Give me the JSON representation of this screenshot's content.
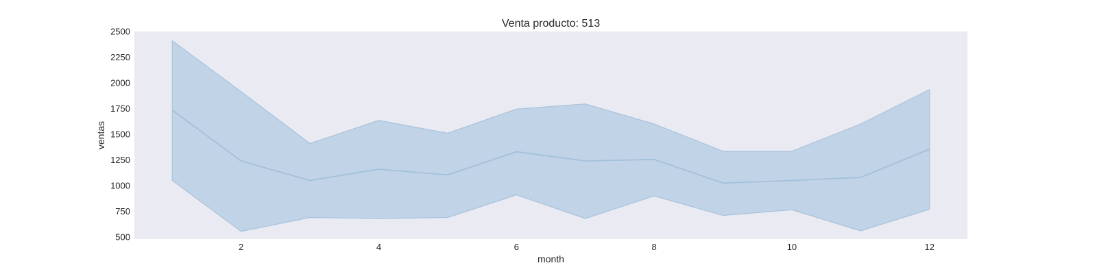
{
  "chart_data": {
    "type": "line",
    "title": "Venta producto: 513",
    "xlabel": "month",
    "ylabel": "ventas",
    "xlim": [
      0.45,
      12.55
    ],
    "ylim": [
      480,
      2500
    ],
    "xticks": [
      2,
      4,
      6,
      8,
      10,
      12
    ],
    "yticks": [
      500,
      750,
      1000,
      1250,
      1500,
      1750,
      2000,
      2250,
      2500
    ],
    "grid": false,
    "legend": "none",
    "colors": {
      "plot_background": "#eaeaf2",
      "line": "#a3c1da",
      "band_fill": "#bcd0e4",
      "band_edge": "#a9c3dc"
    },
    "series": [
      {
        "x": [
          1,
          2,
          3,
          4,
          5,
          6,
          7,
          8,
          9,
          10,
          11,
          12
        ],
        "values": [
          1735,
          1240,
          1050,
          1160,
          1105,
          1330,
          1240,
          1255,
          1025,
          1050,
          1080,
          1355
        ],
        "band_upper": [
          2410,
          1915,
          1410,
          1635,
          1510,
          1745,
          1795,
          1600,
          1335,
          1335,
          1600,
          1935
        ],
        "band_lower": [
          1050,
          555,
          690,
          680,
          690,
          910,
          680,
          900,
          710,
          765,
          560,
          770
        ]
      }
    ]
  }
}
